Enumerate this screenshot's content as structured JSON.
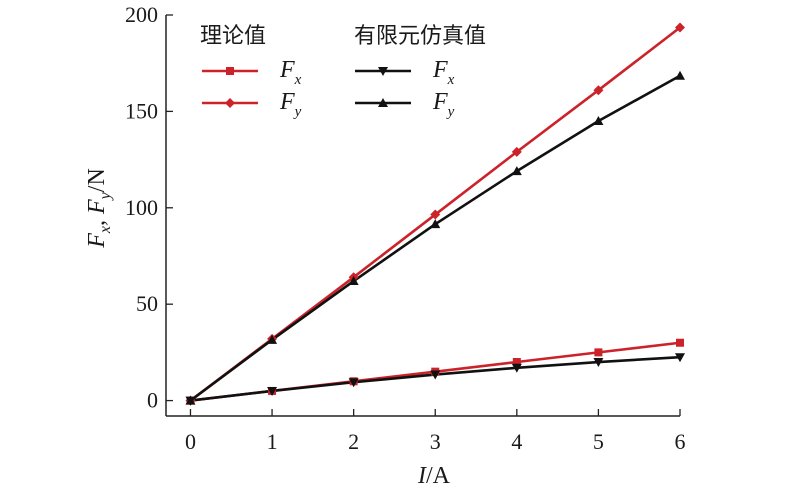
{
  "chart_data": {
    "type": "line",
    "x": [
      0,
      1,
      2,
      3,
      4,
      5,
      6
    ],
    "xlim": [
      -0.3,
      6
    ],
    "ylim": [
      -8,
      200
    ],
    "xticks": [
      "0",
      "1",
      "2",
      "3",
      "4",
      "5",
      "6"
    ],
    "yticks": [
      "0",
      "50",
      "100",
      "150",
      "200"
    ],
    "xtick_values": [
      0,
      1,
      2,
      3,
      4,
      5,
      6
    ],
    "ytick_values": [
      0,
      50,
      100,
      150,
      200
    ],
    "xlabel": {
      "main": "I",
      "suffix": "/A"
    },
    "ylabel": {
      "f1": "F",
      "s1": "x",
      "mid": ", ",
      "f2": "F",
      "s2": "y",
      "unit": "/N"
    },
    "legend_groups": [
      {
        "title": "理论值"
      },
      {
        "title": "有限元仿真值"
      }
    ],
    "series": [
      {
        "group": 0,
        "label_main": "F",
        "label_sub": "x",
        "color": "#cc2229",
        "marker": "square",
        "values": [
          0,
          5,
          10,
          15,
          20,
          25,
          30
        ]
      },
      {
        "group": 0,
        "label_main": "F",
        "label_sub": "y",
        "color": "#cc2229",
        "marker": "diamond",
        "values": [
          0,
          32,
          64,
          96.5,
          129,
          161,
          193.5
        ]
      },
      {
        "group": 1,
        "label_main": "F",
        "label_sub": "x",
        "color": "#111111",
        "marker": "triangle-down",
        "values": [
          0,
          5,
          9.5,
          13.5,
          17,
          20,
          22.5
        ]
      },
      {
        "group": 1,
        "label_main": "F",
        "label_sub": "y",
        "color": "#111111",
        "marker": "triangle-up",
        "values": [
          0,
          31.5,
          62,
          91.5,
          119,
          145,
          168.5
        ]
      }
    ],
    "grid": false,
    "legend_position": "top-left"
  }
}
